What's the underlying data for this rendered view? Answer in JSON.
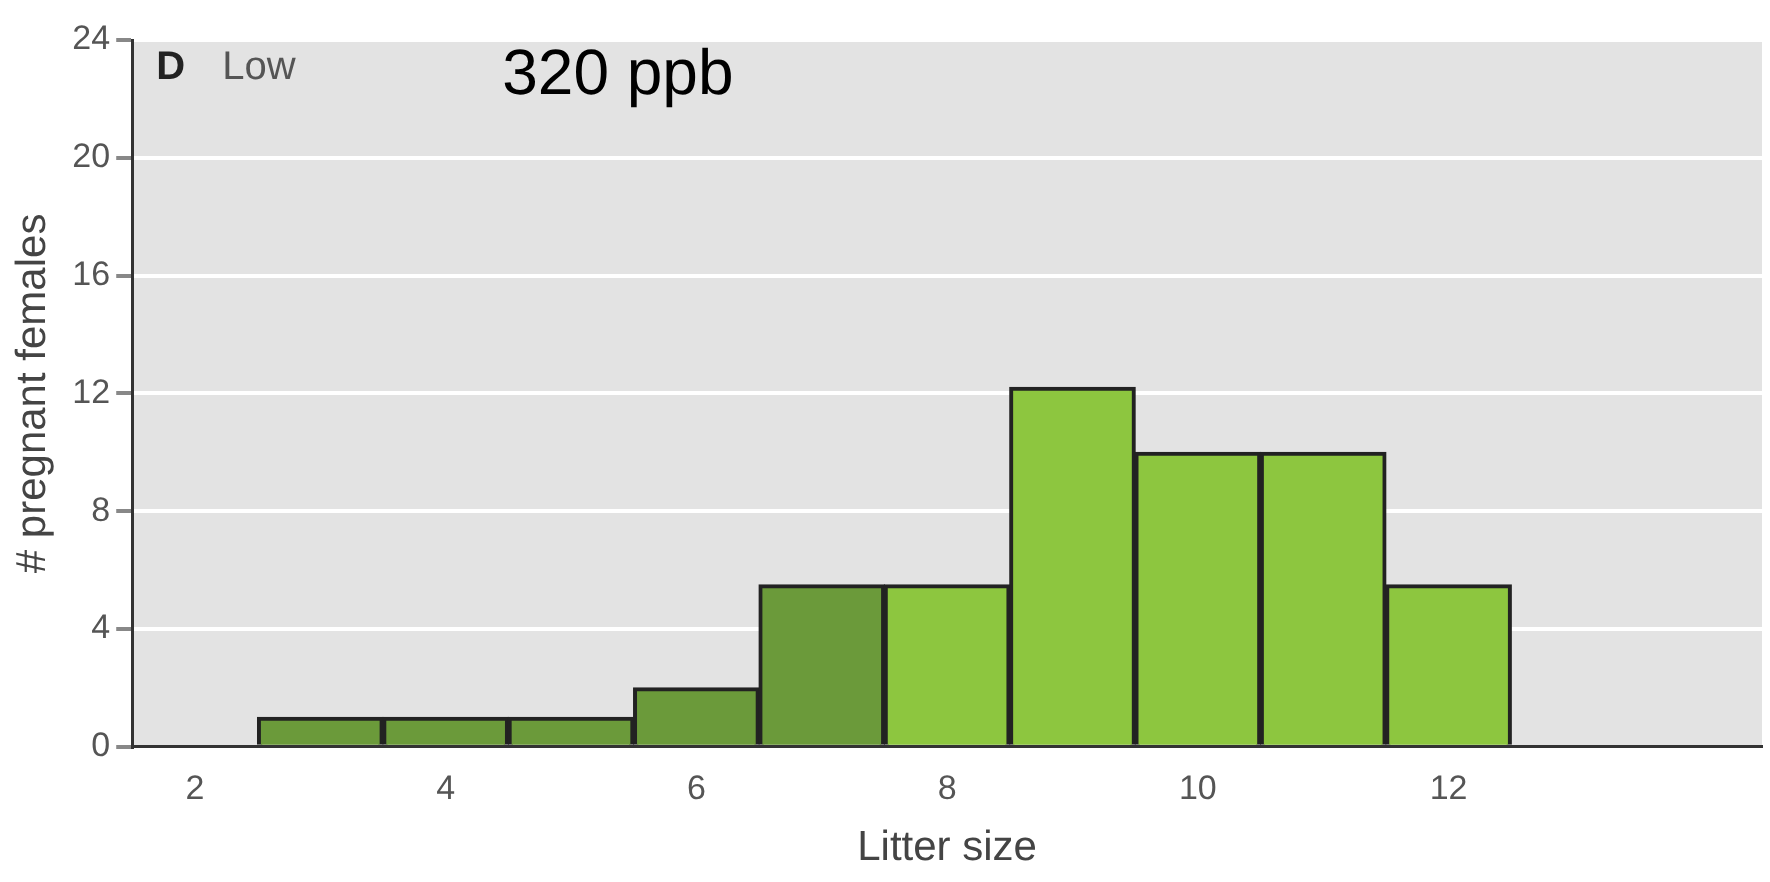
{
  "chart_data": {
    "type": "histogram",
    "xlabel": "Litter size",
    "ylabel": "# pregnant females",
    "annotations": [
      "D",
      "Low",
      "320 ppb"
    ],
    "bins": [
      2.5,
      3.5,
      4.5,
      5.5,
      6.5,
      7.5,
      8.5,
      9.5,
      10.5,
      11.5,
      12.5
    ],
    "values": [
      1,
      1,
      1,
      2,
      5.5,
      5.5,
      12.2,
      10,
      10,
      5.5
    ],
    "colors": [
      "#6b9a3a",
      "#6b9a3a",
      "#6b9a3a",
      "#6b9a3a",
      "#6b9a3a",
      "#8dc63f",
      "#8dc63f",
      "#8dc63f",
      "#8dc63f",
      "#8dc63f"
    ],
    "xlim": [
      1.5,
      14.5
    ],
    "xticks": [
      2,
      4,
      6,
      8,
      10,
      12
    ],
    "ylim": [
      0,
      24
    ],
    "yticks": [
      0,
      4,
      8,
      12,
      16,
      20,
      24
    ],
    "grid": "y",
    "legend": false
  }
}
